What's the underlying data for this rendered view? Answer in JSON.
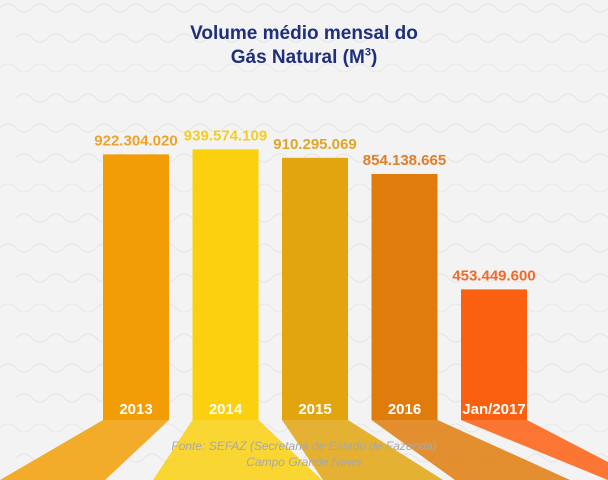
{
  "title": {
    "line1": "Volume médio mensal do",
    "line2_prefix": "Gás Natural (M",
    "line2_sup": "3",
    "line2_suffix": ")"
  },
  "chart_data": {
    "type": "bar",
    "categories": [
      "2013",
      "2014",
      "2015",
      "2016",
      "Jan/2017"
    ],
    "values": [
      922304020,
      939574109,
      910295069,
      854138665,
      453449600
    ],
    "value_labels": [
      "922.304.020",
      "939.574.109",
      "910.295.069",
      "854.138.665",
      "453.449.600"
    ],
    "bar_colors": [
      "#f29d06",
      "#fad00f",
      "#e2a510",
      "#e07c0c",
      "#fb5f10"
    ],
    "label_colors": [
      "#eda32a",
      "#f5cd1f",
      "#e0a628",
      "#e07e2a",
      "#f06a2a"
    ],
    "ylim": [
      0,
      1000000000
    ],
    "grid": false,
    "legend": "none"
  },
  "source": {
    "line1": "Fonte: SEFAZ (Secretaria de Estado de Fazenda)",
    "line2": "Campo Grande News"
  },
  "colors": {
    "title": "#1f2f7a",
    "background": "#f3f3f3",
    "category_text": "#ffffff"
  }
}
